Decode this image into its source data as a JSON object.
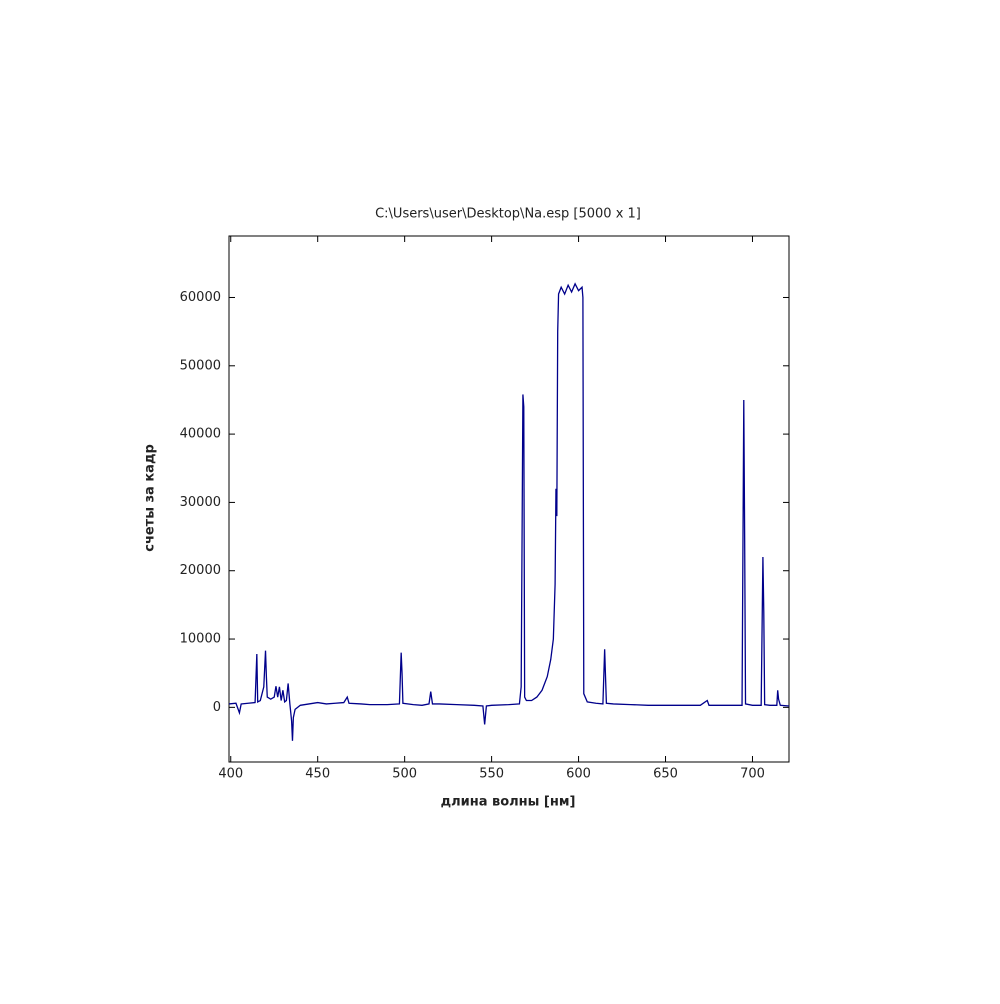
{
  "chart_data": {
    "type": "line",
    "title": "C:\\Users\\user\\Desktop\\Na.esp [5000 x 1]",
    "x_label": "длина волны [нм]",
    "y_label": "счеты за кадр",
    "color": "#00008b",
    "x": [
      399,
      403,
      405,
      406,
      410,
      414,
      415,
      415.5,
      417,
      419,
      420,
      420.5,
      421,
      423,
      425,
      426,
      427,
      428,
      429,
      430,
      431,
      432,
      433,
      434,
      435,
      435.5,
      436,
      437,
      440,
      445,
      450,
      455,
      460,
      465,
      467,
      468,
      475,
      480,
      490,
      497,
      498,
      498.5,
      499,
      505,
      510,
      514,
      515,
      516,
      520,
      530,
      540,
      545,
      546,
      547,
      550,
      560,
      566,
      567,
      568,
      568.5,
      569,
      570,
      573,
      576,
      579,
      582,
      584,
      585.5,
      586.5,
      587,
      587.5,
      588,
      588.5,
      590,
      592,
      594,
      596,
      598,
      600,
      602,
      602.5,
      603,
      605,
      610,
      614,
      615,
      615.5,
      616,
      620,
      630,
      640,
      650,
      660,
      670,
      674,
      675,
      685,
      694,
      695,
      695.5,
      696,
      700,
      705,
      706,
      706.5,
      707,
      710,
      714,
      714.5,
      715,
      716,
      721
    ],
    "values": [
      500,
      600,
      -800,
      500,
      600,
      700,
      7800,
      800,
      1000,
      3000,
      8300,
      4500,
      1500,
      1200,
      1500,
      3100,
      1500,
      3000,
      1000,
      2500,
      800,
      1000,
      3500,
      500,
      -2000,
      -4900,
      -1500,
      -300,
      300,
      500,
      700,
      500,
      600,
      700,
      1500,
      600,
      500,
      400,
      400,
      500,
      8000,
      5000,
      600,
      400,
      300,
      500,
      2300,
      500,
      500,
      400,
      300,
      200,
      -2500,
      200,
      300,
      400,
      500,
      3000,
      45800,
      44000,
      1500,
      1000,
      1000,
      1500,
      2500,
      4500,
      7000,
      10000,
      18000,
      32000,
      28000,
      55000,
      60500,
      61500,
      60500,
      61800,
      60800,
      62000,
      61000,
      61500,
      60000,
      2000,
      800,
      600,
      500,
      8500,
      4500,
      600,
      500,
      400,
      300,
      300,
      300,
      300,
      1000,
      300,
      300,
      300,
      45000,
      25000,
      500,
      300,
      300,
      22000,
      14000,
      400,
      300,
      300,
      2500,
      1200,
      300,
      200
    ],
    "xlim": [
      399,
      721
    ],
    "ylim": [
      -8000,
      69000
    ],
    "xticks": [
      400,
      450,
      500,
      550,
      600,
      650,
      700
    ],
    "yticks": [
      0,
      10000,
      20000,
      30000,
      40000,
      50000,
      60000
    ],
    "grid": false
  }
}
